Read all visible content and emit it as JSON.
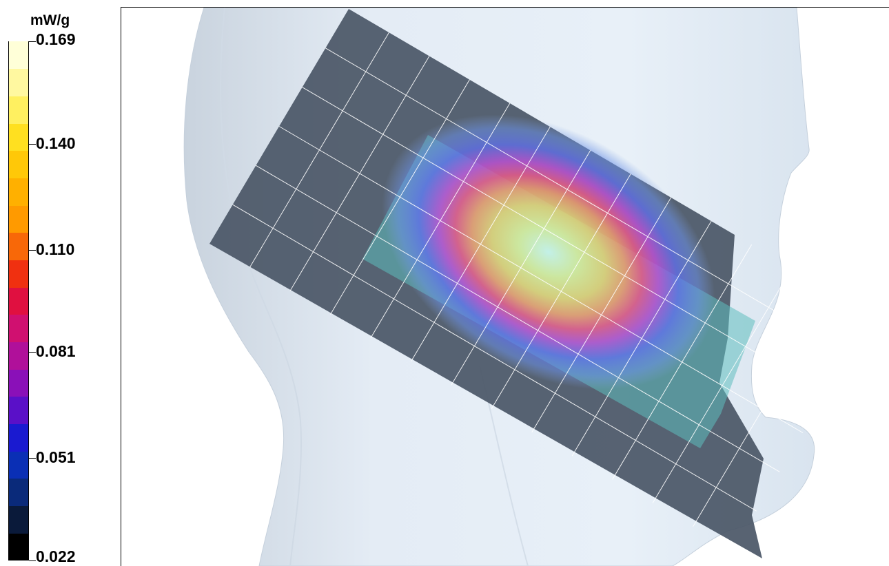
{
  "legend": {
    "unit": "mW/g",
    "ticks": [
      {
        "label": "0.169",
        "value": 0.169
      },
      {
        "label": "0.140",
        "value": 0.14
      },
      {
        "label": "0.110",
        "value": 0.11
      },
      {
        "label": "0.081",
        "value": 0.081
      },
      {
        "label": "0.051",
        "value": 0.051
      },
      {
        "label": "0.022",
        "value": 0.022
      }
    ],
    "range": [
      0.022,
      0.169
    ],
    "colors": [
      "#000000",
      "#0a1a3a",
      "#0a2a7a",
      "#0a2fb5",
      "#1a1ad0",
      "#5a10c8",
      "#8a10b8",
      "#b0109a",
      "#d01070",
      "#e01040",
      "#f03010",
      "#f86808",
      "#ff9a00",
      "#ffb000",
      "#ffc808",
      "#ffe020",
      "#fff060",
      "#fff8a0",
      "#ffffd8"
    ]
  },
  "scene": {
    "head_color": "#dbe6f2",
    "plane_color": "#4a5666",
    "grid_color": "#ffffff",
    "hotspot_peak_color": "#b8f0e0"
  }
}
